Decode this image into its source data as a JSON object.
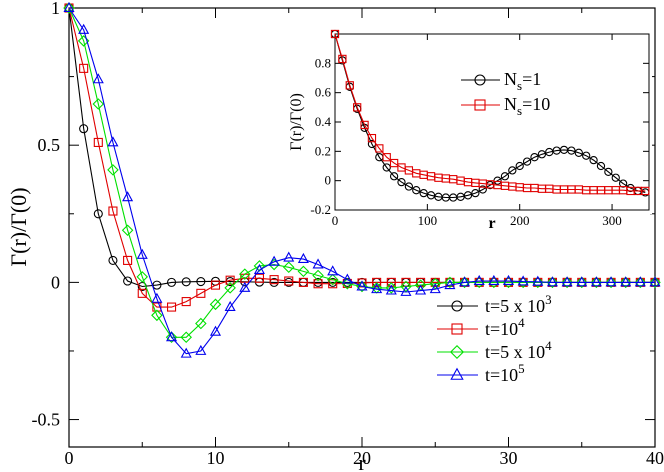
{
  "chart_data": [
    {
      "type": "line",
      "xlabel": "r",
      "ylabel": "Γ(r)/Γ(0)",
      "xlim": [
        0,
        40
      ],
      "ylim": [
        -0.6,
        1.0
      ],
      "xticks": [
        "0",
        "10",
        "20",
        "30",
        "40"
      ],
      "yticks": [
        "-0.5",
        "0",
        "0.5",
        "1"
      ],
      "legend_position": "bottom-right",
      "series": [
        {
          "name": "t=5 x 10",
          "name_sup": "3",
          "color": "#000000",
          "marker": "circle",
          "x": [
            0,
            1,
            2,
            3,
            4,
            5,
            6,
            7,
            8,
            9,
            10,
            11,
            12,
            13,
            14,
            15,
            16,
            17,
            18,
            19,
            20,
            21,
            22,
            23,
            24,
            25,
            26,
            27,
            28,
            29,
            30,
            31,
            32,
            33,
            34,
            35,
            36,
            37,
            38,
            39,
            40
          ],
          "y": [
            1.0,
            0.56,
            0.25,
            0.08,
            0.005,
            -0.015,
            -0.01,
            0.0,
            0.002,
            0.003,
            0.004,
            0.003,
            0.002,
            0.001,
            0.0,
            0,
            0,
            0,
            0,
            0,
            0,
            0,
            0,
            0,
            0,
            0,
            0,
            0,
            0,
            0,
            0,
            0,
            0,
            0,
            0,
            0,
            0,
            0,
            0,
            0,
            0
          ]
        },
        {
          "name": "t=10",
          "name_sup": "4",
          "color": "#e00000",
          "marker": "square",
          "x": [
            0,
            1,
            2,
            3,
            4,
            5,
            6,
            7,
            8,
            9,
            10,
            11,
            12,
            13,
            14,
            15,
            16,
            17,
            18,
            19,
            20,
            21,
            22,
            23,
            24,
            25,
            26,
            27,
            28,
            29,
            30,
            31,
            32,
            33,
            34,
            35,
            36,
            37,
            38,
            39,
            40
          ],
          "y": [
            1.0,
            0.78,
            0.51,
            0.26,
            0.08,
            -0.04,
            -0.09,
            -0.09,
            -0.07,
            -0.04,
            -0.01,
            0.008,
            0.015,
            0.015,
            0.01,
            0.005,
            0.0,
            -0.005,
            -0.005,
            -0.004,
            -0.002,
            0,
            0,
            0,
            0,
            0,
            0,
            0,
            0,
            0,
            0,
            0,
            0,
            0,
            0,
            0,
            0,
            0,
            0,
            0,
            0
          ]
        },
        {
          "name": "t=5 x 10",
          "name_sup": "4",
          "color": "#00e000",
          "marker": "diamond",
          "x": [
            0,
            1,
            2,
            3,
            4,
            5,
            6,
            7,
            8,
            9,
            10,
            11,
            12,
            13,
            14,
            15,
            16,
            17,
            18,
            19,
            20,
            21,
            22,
            23,
            24,
            25,
            26,
            27,
            28,
            29,
            30,
            31,
            32,
            33,
            34,
            35,
            36,
            37,
            38,
            39,
            40
          ],
          "y": [
            1.0,
            0.88,
            0.65,
            0.41,
            0.19,
            0.02,
            -0.12,
            -0.2,
            -0.2,
            -0.15,
            -0.08,
            -0.02,
            0.03,
            0.06,
            0.065,
            0.055,
            0.04,
            0.025,
            0.01,
            -0.005,
            -0.015,
            -0.02,
            -0.02,
            -0.015,
            -0.01,
            -0.005,
            0.0,
            0,
            0,
            0,
            0,
            0,
            0,
            0,
            0,
            0,
            0,
            0,
            0,
            0,
            0
          ]
        },
        {
          "name": "t=10",
          "name_sup": "5",
          "color": "#0000ee",
          "marker": "triangle",
          "x": [
            0,
            1,
            2,
            3,
            4,
            5,
            6,
            7,
            8,
            9,
            10,
            11,
            12,
            13,
            14,
            15,
            16,
            17,
            18,
            19,
            20,
            21,
            22,
            23,
            24,
            25,
            26,
            27,
            28,
            29,
            30,
            31,
            32,
            33,
            34,
            35,
            36,
            37,
            38,
            39,
            40
          ],
          "y": [
            1.0,
            0.92,
            0.74,
            0.51,
            0.31,
            0.1,
            -0.06,
            -0.2,
            -0.26,
            -0.25,
            -0.18,
            -0.09,
            -0.02,
            0.045,
            0.075,
            0.09,
            0.085,
            0.065,
            0.04,
            0.01,
            -0.015,
            -0.025,
            -0.03,
            -0.035,
            -0.03,
            -0.025,
            -0.01,
            0.0,
            0.005,
            0.005,
            0.005,
            0.003,
            0.002,
            0,
            0,
            0,
            0,
            0,
            0,
            0,
            0
          ]
        }
      ]
    },
    {
      "type": "line",
      "xlabel": "r",
      "ylabel": "Γ(r)/Γ(0)",
      "xlim": [
        0,
        340
      ],
      "ylim": [
        -0.2,
        1.0
      ],
      "xticks": [
        "0",
        "100",
        "200",
        "300"
      ],
      "yticks": [
        "-0.2",
        "0",
        "0.2",
        "0.4",
        "0.6",
        "0.8"
      ],
      "legend_position": "top-right",
      "series": [
        {
          "name": "N",
          "name_sub": "s",
          "name_suffix": "=1",
          "color": "#000000",
          "marker": "circle",
          "x": [
            0,
            8,
            16,
            24,
            32,
            40,
            48,
            56,
            64,
            72,
            80,
            88,
            96,
            104,
            112,
            120,
            128,
            136,
            144,
            152,
            160,
            168,
            176,
            184,
            192,
            200,
            208,
            216,
            224,
            232,
            240,
            248,
            256,
            264,
            272,
            280,
            288,
            296,
            304,
            312,
            320,
            328,
            336
          ],
          "y": [
            1.0,
            0.82,
            0.64,
            0.49,
            0.36,
            0.25,
            0.16,
            0.09,
            0.03,
            -0.01,
            -0.04,
            -0.065,
            -0.085,
            -0.1,
            -0.11,
            -0.115,
            -0.115,
            -0.11,
            -0.1,
            -0.085,
            -0.06,
            -0.03,
            0.0,
            0.03,
            0.07,
            0.1,
            0.13,
            0.16,
            0.18,
            0.195,
            0.205,
            0.21,
            0.205,
            0.19,
            0.17,
            0.14,
            0.1,
            0.06,
            0.02,
            -0.02,
            -0.05,
            -0.07,
            -0.08
          ]
        },
        {
          "name": "N",
          "name_sub": "s",
          "name_suffix": "=10",
          "color": "#e00000",
          "marker": "square",
          "x": [
            0,
            8,
            16,
            24,
            32,
            40,
            48,
            56,
            64,
            72,
            80,
            88,
            96,
            104,
            112,
            120,
            128,
            136,
            144,
            152,
            160,
            168,
            176,
            184,
            192,
            200,
            208,
            216,
            224,
            232,
            240,
            248,
            256,
            264,
            272,
            280,
            288,
            296,
            304,
            312,
            320,
            328,
            336
          ],
          "y": [
            1.0,
            0.83,
            0.65,
            0.5,
            0.38,
            0.29,
            0.22,
            0.16,
            0.12,
            0.09,
            0.07,
            0.05,
            0.04,
            0.03,
            0.02,
            0.015,
            0.01,
            0.0,
            -0.01,
            -0.015,
            -0.02,
            -0.025,
            -0.03,
            -0.035,
            -0.04,
            -0.045,
            -0.05,
            -0.05,
            -0.055,
            -0.055,
            -0.06,
            -0.06,
            -0.06,
            -0.06,
            -0.065,
            -0.065,
            -0.065,
            -0.065,
            -0.065,
            -0.065,
            -0.07,
            -0.07,
            -0.07
          ]
        }
      ]
    }
  ]
}
